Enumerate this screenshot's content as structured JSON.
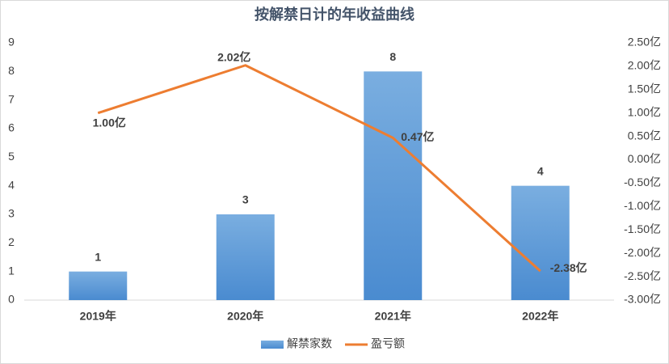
{
  "chart_data": {
    "type": "combo",
    "title": "按解禁日计的年收益曲线",
    "categories": [
      "2019年",
      "2020年",
      "2021年",
      "2022年"
    ],
    "series": [
      {
        "name": "解禁家数",
        "type": "bar",
        "color": "#5b9bd5",
        "values": [
          1,
          3,
          8,
          4
        ]
      },
      {
        "name": "盈亏额",
        "type": "line",
        "axis": "y2",
        "color": "#ed7d31",
        "values": [
          1.0,
          2.02,
          0.47,
          -2.38
        ],
        "value_labels": [
          "1.00亿",
          "2.02亿",
          "0.47亿",
          "-2.38亿"
        ]
      }
    ],
    "ylim": [
      0,
      9
    ],
    "yticks": [
      0,
      1,
      2,
      3,
      4,
      5,
      6,
      7,
      8,
      9
    ],
    "y2lim": [
      -3,
      2.5
    ],
    "y2ticks": [
      {
        "value": -3,
        "label": "-3.00亿"
      },
      {
        "value": -2.5,
        "label": "-2.50亿"
      },
      {
        "value": -2,
        "label": "-2.00亿"
      },
      {
        "value": -1.5,
        "label": "-1.50亿"
      },
      {
        "value": -1,
        "label": "-1.00亿"
      },
      {
        "value": -0.5,
        "label": "-0.50亿"
      },
      {
        "value": 0,
        "label": "0.00亿"
      },
      {
        "value": 0.5,
        "label": "0.50亿"
      },
      {
        "value": 1,
        "label": "1.00亿"
      },
      {
        "value": 1.5,
        "label": "1.50亿"
      },
      {
        "value": 2,
        "label": "2.00亿"
      },
      {
        "value": 2.5,
        "label": "2.50亿"
      }
    ],
    "grid": false,
    "legend": "bottom"
  }
}
